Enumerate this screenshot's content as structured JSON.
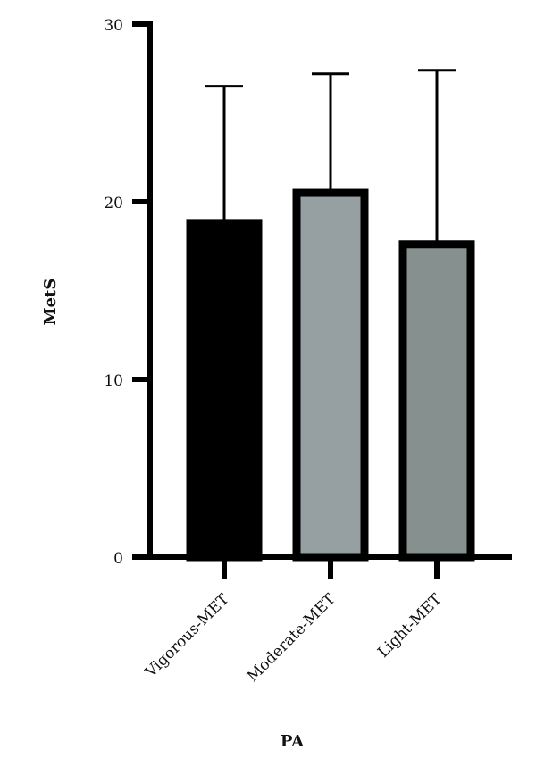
{
  "chart_data": {
    "type": "bar",
    "xlabel": "PA",
    "ylabel": "MetS",
    "ylim": [
      0,
      30
    ],
    "yticks": [
      0,
      10,
      20,
      30
    ],
    "grid": false,
    "legend": "none",
    "categories": [
      "Vigorous-MET",
      "Moderate-MET",
      "Light-MET"
    ],
    "values": [
      18.8,
      20.5,
      17.6
    ],
    "error_upper": [
      26.5,
      27.2,
      27.4
    ],
    "colors": [
      "#000000",
      "#96a0a3",
      "#85908f"
    ],
    "edge_color": "#000000"
  }
}
